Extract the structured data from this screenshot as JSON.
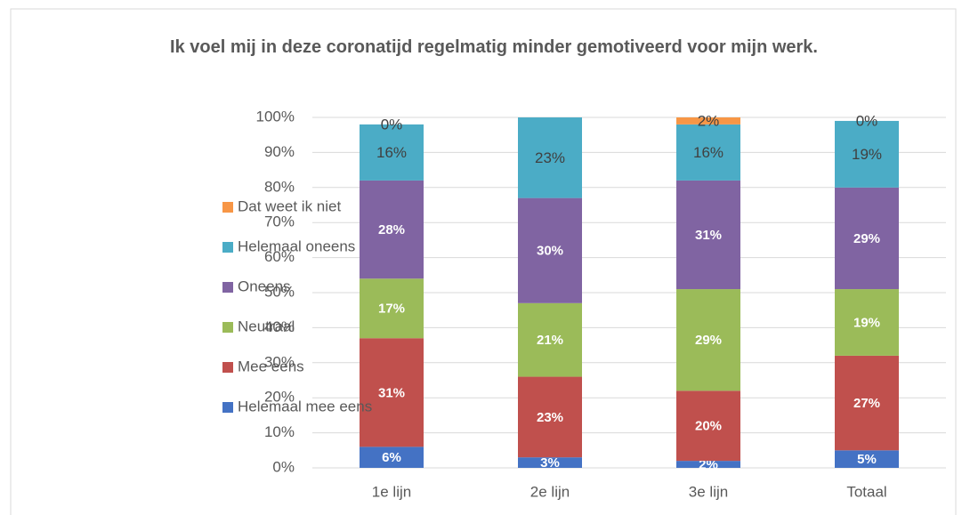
{
  "chart_data": {
    "type": "stacked_bar",
    "title": "Ik voel mij in deze coronatijd regelmatig minder gemotiveerd voor mijn werk.",
    "categories": [
      "1e lijn",
      "2e lijn",
      "3e lijn",
      "Totaal"
    ],
    "series": [
      {
        "name": "Helemaal mee eens",
        "color": "#4472c4",
        "values": [
          6,
          3,
          2,
          5
        ],
        "value_labels": [
          "6%",
          "3%",
          "2%",
          "5%"
        ]
      },
      {
        "name": "Mee eens",
        "color": "#c0504d",
        "values": [
          31,
          23,
          20,
          27
        ],
        "value_labels": [
          "31%",
          "23%",
          "20%",
          "27%"
        ]
      },
      {
        "name": "Neutraal",
        "color": "#9bbb59",
        "values": [
          17,
          21,
          29,
          19
        ],
        "value_labels": [
          "17%",
          "21%",
          "29%",
          "19%"
        ]
      },
      {
        "name": "Oneens",
        "color": "#8064a2",
        "values": [
          28,
          30,
          31,
          29
        ],
        "value_labels": [
          "28%",
          "30%",
          "31%",
          "29%"
        ]
      },
      {
        "name": "Helemaal oneens",
        "color": "#4bacc6",
        "values": [
          16,
          23,
          16,
          19
        ],
        "value_labels": [
          "16%",
          "23%",
          "16%",
          "19%"
        ]
      },
      {
        "name": "Dat weet ik niet",
        "color": "#f79646",
        "values": [
          0,
          null,
          2,
          0
        ],
        "value_labels": [
          "0%",
          null,
          "2%",
          "0%"
        ]
      }
    ],
    "ylim": [
      0,
      100
    ],
    "yticks": [
      {
        "value": 0,
        "label": "0%"
      },
      {
        "value": 10,
        "label": "10%"
      },
      {
        "value": 20,
        "label": "20%"
      },
      {
        "value": 30,
        "label": "30%"
      },
      {
        "value": 40,
        "label": "40%"
      },
      {
        "value": 50,
        "label": "50%"
      },
      {
        "value": 60,
        "label": "60%"
      },
      {
        "value": 70,
        "label": "70%"
      },
      {
        "value": 80,
        "label": "80%"
      },
      {
        "value": 90,
        "label": "90%"
      },
      {
        "value": 100,
        "label": "100%"
      }
    ],
    "grid": true,
    "legend": "left"
  }
}
